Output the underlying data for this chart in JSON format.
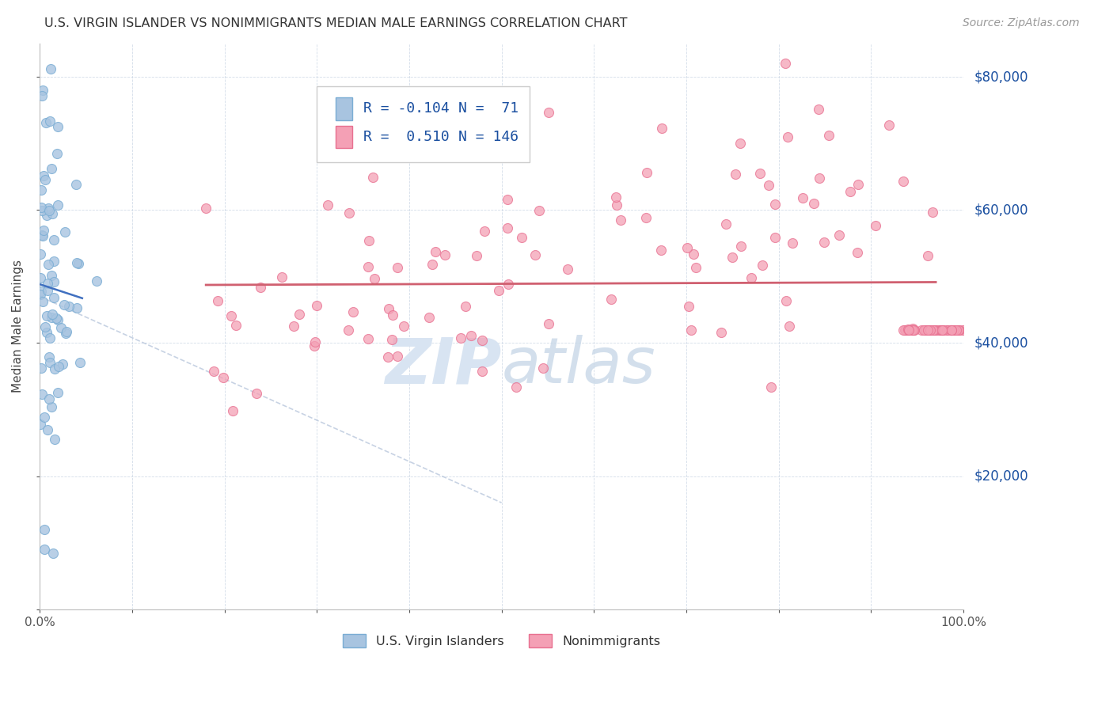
{
  "title": "U.S. VIRGIN ISLANDER VS NONIMMIGRANTS MEDIAN MALE EARNINGS CORRELATION CHART",
  "source": "Source: ZipAtlas.com",
  "ylabel": "Median Male Earnings",
  "ytick_labels": [
    "$20,000",
    "$40,000",
    "$60,000",
    "$80,000"
  ],
  "ytick_values": [
    20000,
    40000,
    60000,
    80000
  ],
  "color_blue": "#a8c4e0",
  "color_blue_marker": "#7aadd4",
  "color_pink": "#f4a0b5",
  "color_pink_marker": "#e87090",
  "color_blue_text": "#1a4fa0",
  "color_pink_line": "#d06070",
  "color_blue_line": "#4070c0",
  "watermark_color": "#d8e4f2",
  "legend_box_edge": "#cccccc",
  "grid_color": "#c8d4e4"
}
